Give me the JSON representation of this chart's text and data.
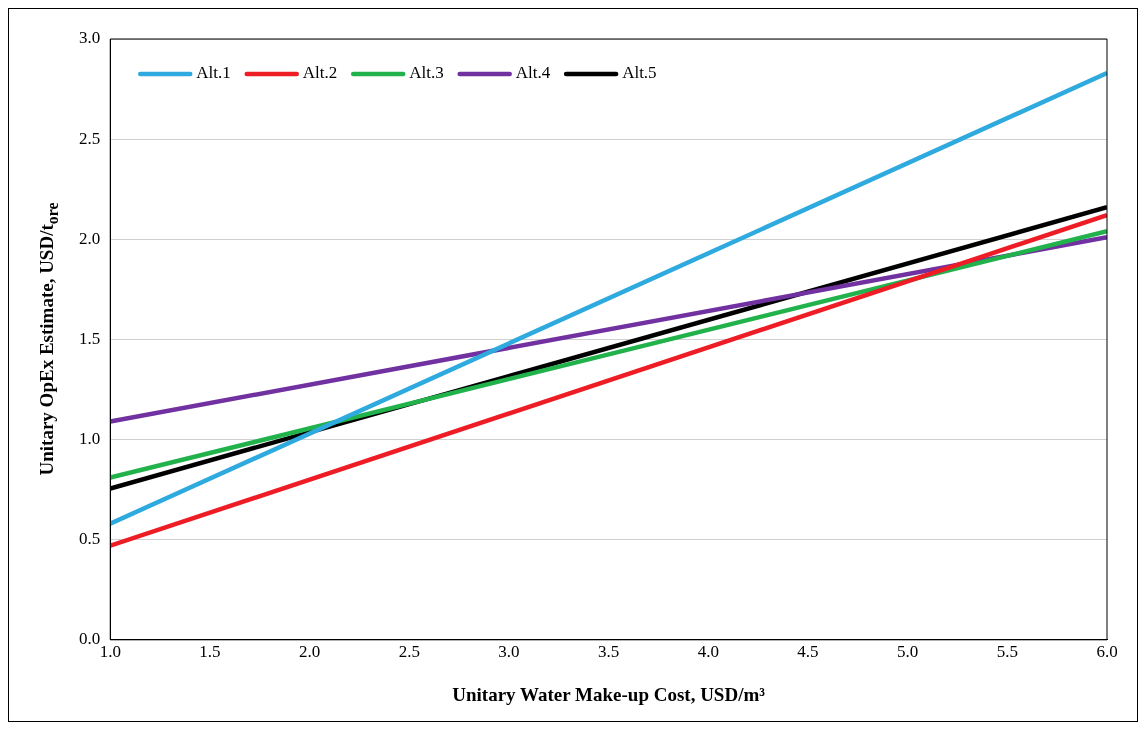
{
  "chart_data": {
    "type": "line",
    "xlabel": "Unitary Water Make-up Cost, USD/m³",
    "ylabel": "Unitary OpEx Estimate, USD/t$_{ore}$",
    "x": [
      1.0,
      6.0
    ],
    "series": [
      {
        "name": "Alt.1",
        "color": "#2eaadf",
        "values": [
          0.58,
          2.83
        ]
      },
      {
        "name": "Alt.2",
        "color": "#ee1c25",
        "values": [
          0.47,
          2.12
        ]
      },
      {
        "name": "Alt.3",
        "color": "#21b24b",
        "values": [
          0.81,
          2.04
        ]
      },
      {
        "name": "Alt.4",
        "color": "#7131a0",
        "values": [
          1.09,
          2.01
        ]
      },
      {
        "name": "Alt.5",
        "color": "#000000",
        "values": [
          0.755,
          2.16
        ]
      }
    ],
    "xlim": [
      1.0,
      6.0
    ],
    "xticks": [
      {
        "value": 1,
        "label": "1.0"
      },
      {
        "value": 1.5,
        "label": "1.5"
      },
      {
        "value": 2,
        "label": "2.0"
      },
      {
        "value": 2.5,
        "label": "2.5"
      },
      {
        "value": 3,
        "label": "3.0"
      },
      {
        "value": 3.5,
        "label": "3.5"
      },
      {
        "value": 4,
        "label": "4.0"
      },
      {
        "value": 4.5,
        "label": "4.5"
      },
      {
        "value": 5,
        "label": "5.0"
      },
      {
        "value": 5.5,
        "label": "5.5"
      },
      {
        "value": 6,
        "label": "6.0"
      }
    ],
    "ylim": [
      0,
      3.0
    ],
    "yticks": [
      {
        "value": 0,
        "label": "0.0"
      },
      {
        "value": 0.5,
        "label": "0.5"
      },
      {
        "value": 1,
        "label": "1.0"
      },
      {
        "value": 1.5,
        "label": "1.5"
      },
      {
        "value": 2,
        "label": "2.0"
      },
      {
        "value": 2.5,
        "label": "2.5"
      },
      {
        "value": 3,
        "label": "3.0"
      }
    ],
    "grid": "y",
    "legend": "top left",
    "marker": "none",
    "line_style": "solid"
  }
}
